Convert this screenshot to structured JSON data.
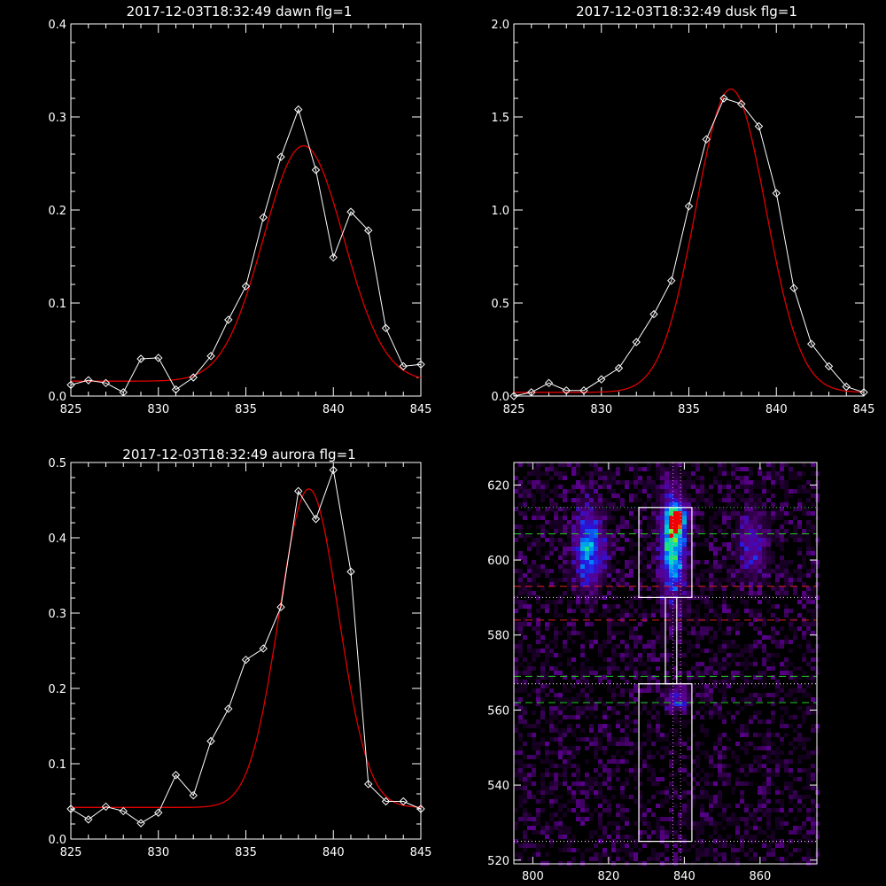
{
  "colors": {
    "background": "#000000",
    "axes": "#ffffff",
    "data_line": "#ffffff",
    "fit_line": "#e00000",
    "green_dash": "#22cc22",
    "red_dash": "#dd2222",
    "box": "#ffffff"
  },
  "chart_data": [
    {
      "type": "line",
      "title": "2017-12-03T18:32:49 dawn flg=1",
      "xlim": [
        825,
        845
      ],
      "ylim": [
        0,
        0.4
      ],
      "xticks": [
        825,
        830,
        835,
        840,
        845
      ],
      "yticks": [
        "0.0",
        "0.1",
        "0.2",
        "0.3",
        "0.4"
      ],
      "ytick_values": [
        0,
        0.1,
        0.2,
        0.3,
        0.4
      ],
      "series": [
        {
          "x": [
            825,
            826,
            827,
            828,
            829,
            830,
            831,
            832,
            833,
            834,
            835,
            836,
            837,
            838,
            839,
            840,
            841,
            842,
            843,
            844,
            845
          ],
          "y": [
            0.012,
            0.017,
            0.014,
            0.004,
            0.04,
            0.041,
            0.007,
            0.02,
            0.043,
            0.082,
            0.118,
            0.192,
            0.257,
            0.308,
            0.243,
            0.149,
            0.198,
            0.178,
            0.073,
            0.032,
            0.034
          ]
        },
        {
          "fit": {
            "baseline": 0.016,
            "amplitude": 0.253,
            "center": 838.3,
            "sigma": 2.3
          }
        }
      ]
    },
    {
      "type": "line",
      "title": "2017-12-03T18:32:49 dusk flg=1",
      "xlim": [
        825,
        845
      ],
      "ylim": [
        0,
        2.0
      ],
      "xticks": [
        825,
        830,
        835,
        840,
        845
      ],
      "yticks": [
        "0.0",
        "0.5",
        "1.0",
        "1.5",
        "2.0"
      ],
      "ytick_values": [
        0,
        0.5,
        1.0,
        1.5,
        2.0
      ],
      "series": [
        {
          "x": [
            825,
            826,
            827,
            828,
            829,
            830,
            831,
            832,
            833,
            834,
            835,
            836,
            837,
            838,
            839,
            840,
            841,
            842,
            843,
            844,
            845
          ],
          "y": [
            0.0,
            0.02,
            0.07,
            0.03,
            0.03,
            0.09,
            0.15,
            0.29,
            0.44,
            0.62,
            1.02,
            1.38,
            1.6,
            1.57,
            1.45,
            1.09,
            0.58,
            0.28,
            0.16,
            0.05,
            0.02
          ]
        },
        {
          "fit": {
            "baseline": 0.02,
            "amplitude": 1.63,
            "center": 837.4,
            "sigma": 2.0
          }
        }
      ]
    },
    {
      "type": "line",
      "title": "2017-12-03T18:32:49 aurora flg=1",
      "xlim": [
        825,
        845
      ],
      "ylim": [
        0,
        0.5
      ],
      "xticks": [
        825,
        830,
        835,
        840,
        845
      ],
      "yticks": [
        "0.0",
        "0.1",
        "0.2",
        "0.3",
        "0.4",
        "0.5"
      ],
      "ytick_values": [
        0,
        0.1,
        0.2,
        0.3,
        0.4,
        0.5
      ],
      "series": [
        {
          "x": [
            825,
            826,
            827,
            828,
            829,
            830,
            831,
            832,
            833,
            834,
            835,
            836,
            837,
            838,
            839,
            840,
            841,
            842,
            843,
            844,
            845
          ],
          "y": [
            0.04,
            0.026,
            0.043,
            0.037,
            0.021,
            0.035,
            0.085,
            0.058,
            0.13,
            0.173,
            0.238,
            0.253,
            0.308,
            0.462,
            0.425,
            0.49,
            0.355,
            0.073,
            0.05,
            0.05,
            0.04
          ]
        },
        {
          "fit": {
            "baseline": 0.042,
            "amplitude": 0.423,
            "center": 838.6,
            "sigma": 1.7
          }
        }
      ]
    },
    {
      "type": "heatmap",
      "xlim": [
        795,
        875
      ],
      "ylim": [
        519,
        626
      ],
      "xticks": [
        "800",
        "820",
        "840",
        "860"
      ],
      "xtick_values": [
        800,
        820,
        840,
        860
      ],
      "yticks": [
        "520",
        "540",
        "560",
        "580",
        "600",
        "620"
      ],
      "ytick_values": [
        520,
        540,
        560,
        580,
        600,
        620
      ],
      "hotspots": [
        {
          "x": 815,
          "y": 603,
          "sx": 2.5,
          "sy": 7,
          "level": 0.55
        },
        {
          "x": 837,
          "y": 604,
          "sx": 2.2,
          "sy": 9,
          "level": 0.75
        },
        {
          "x": 838,
          "y": 611,
          "sx": 1.5,
          "sy": 2,
          "level": 1.0
        },
        {
          "x": 858,
          "y": 604,
          "sx": 2.5,
          "sy": 6,
          "level": 0.3
        },
        {
          "x": 838,
          "y": 563,
          "sx": 2,
          "sy": 2,
          "level": 0.35
        }
      ],
      "green_dashed_y": [
        607,
        569,
        562
      ],
      "green_dotted_y": [
        614
      ],
      "red_dashed_y": [
        593,
        584
      ],
      "white_dotted_y": [
        590,
        567,
        525
      ],
      "magenta_dotted_x": [
        837,
        839
      ],
      "boxes": [
        {
          "x0": 828,
          "x1": 842,
          "y0": 590,
          "y1": 614
        },
        {
          "x0": 828,
          "x1": 842,
          "y0": 525,
          "y1": 567
        },
        {
          "x0": 835,
          "x1": 838,
          "y0": 567,
          "y1": 590
        }
      ]
    }
  ]
}
